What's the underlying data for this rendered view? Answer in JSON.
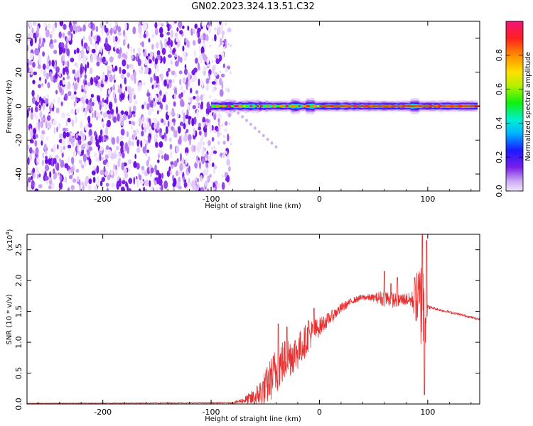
{
  "title": "GN02.2023.324.13.51.C32",
  "colorbar": {
    "label": "Normalized spectral amplitude",
    "ticks": [
      "0.0",
      "0.2",
      "0.4",
      "0.6",
      "0.8"
    ],
    "tick_values": [
      0.0,
      0.2,
      0.4,
      0.6,
      0.8
    ],
    "range": [
      0,
      1
    ],
    "colormap": "rainbow (purple → red)"
  },
  "chart_data": [
    {
      "type": "heatmap",
      "name": "spectrogram",
      "xlabel": "Height of straight line (km)",
      "ylabel": "Frequency (Hz)",
      "xlim": [
        -270,
        148
      ],
      "ylim": [
        -50,
        50
      ],
      "x_ticks": [
        -200,
        -100,
        0,
        100
      ],
      "x_tick_labels": [
        "-200",
        "-100",
        "0",
        "100"
      ],
      "y_ticks": [
        -40,
        -20,
        0,
        20,
        40
      ],
      "y_tick_labels": [
        "-40",
        "-20",
        "0",
        "20",
        "40"
      ],
      "noise_region_x": [
        -270,
        -88
      ],
      "signal_band_x": [
        -100,
        148
      ],
      "signal_band_freq": [
        -4,
        4
      ],
      "signal_peaks_x": [
        -22,
        -8,
        88
      ],
      "tail_end": [
        -40,
        -24
      ]
    },
    {
      "type": "line",
      "name": "snr",
      "xlabel": "Height of straight line (km)",
      "ylabel": "SNR (10 * v/v)",
      "y_multiplier_label": "(x10",
      "y_multiplier_exp": "4",
      "y_multiplier_close": ")",
      "xlim": [
        -270,
        148
      ],
      "ylim": [
        0,
        2.75
      ],
      "x_ticks": [
        -200,
        -100,
        0,
        100
      ],
      "x_tick_labels": [
        "-200",
        "-100",
        "0",
        "100"
      ],
      "y_ticks": [
        0.0,
        0.5,
        1.0,
        1.5,
        2.0,
        2.5
      ],
      "y_tick_labels": [
        "0.0",
        "0.5",
        "1.0",
        "1.5",
        "2.0",
        "2.5"
      ],
      "series_color": "#e83030",
      "envelope_x": [
        -270,
        -80,
        -72,
        -60,
        -50,
        -40,
        -30,
        -20,
        -10,
        0,
        10,
        20,
        30,
        40,
        50,
        60,
        70,
        80,
        85,
        92,
        98,
        100,
        104,
        110,
        120,
        130,
        148
      ],
      "envelope_y": [
        0.01,
        0.02,
        0.05,
        0.1,
        0.25,
        0.55,
        0.75,
        0.85,
        1.1,
        1.25,
        1.4,
        1.55,
        1.67,
        1.73,
        1.72,
        1.72,
        1.68,
        1.7,
        1.68,
        1.7,
        1.45,
        1.57,
        1.56,
        1.53,
        1.49,
        1.45,
        1.37
      ],
      "noise_amp_x": [
        -270,
        -80,
        -70,
        -60,
        -50,
        -40,
        -30,
        -20,
        -10,
        0,
        10,
        20,
        30,
        40,
        50,
        60,
        70,
        80,
        85,
        88,
        92,
        96,
        100,
        104,
        120,
        148
      ],
      "noise_amp_y": [
        0.005,
        0.01,
        0.05,
        0.15,
        0.3,
        0.4,
        0.35,
        0.3,
        0.25,
        0.15,
        0.1,
        0.08,
        0.05,
        0.05,
        0.06,
        0.15,
        0.12,
        0.1,
        0.12,
        0.3,
        0.6,
        0.9,
        0.04,
        0.02,
        0.02,
        0.02
      ],
      "spikes": [
        [
          -38,
          1.3
        ],
        [
          -30,
          1.25
        ],
        [
          -10,
          1.35
        ],
        [
          -5,
          1.55
        ],
        [
          60,
          2.15
        ],
        [
          66,
          1.95
        ],
        [
          72,
          2.05
        ],
        [
          88,
          2.05
        ],
        [
          95,
          2.75
        ],
        [
          97,
          0.15
        ],
        [
          99,
          2.65
        ]
      ]
    }
  ]
}
